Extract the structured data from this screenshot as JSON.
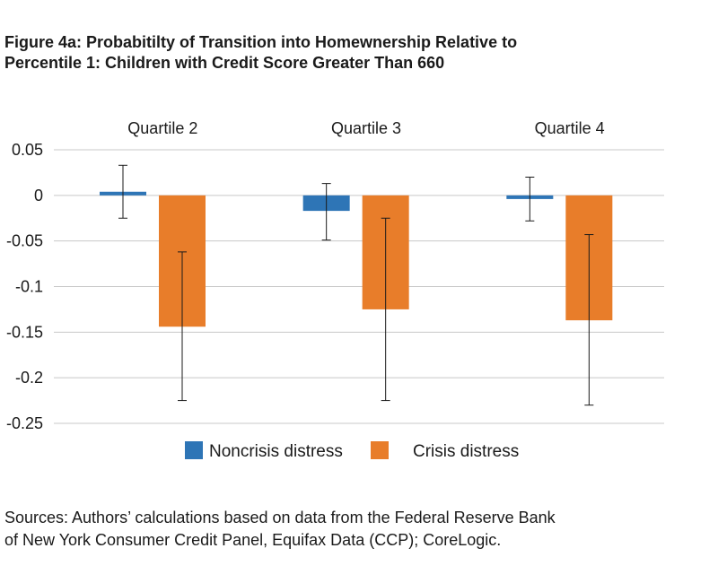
{
  "title_lines": [
    "Figure 4a: Probabitilty of Transition into Homewnership Relative to",
    "Percentile 1: Children with Credit Score Greater Than 660"
  ],
  "source_lines": [
    "Sources: Authors’ calculations based on data from the Federal Reserve Bank",
    "of New York Consumer Credit Panel, Equifax Data (CCP); CoreLogic."
  ],
  "chart_data": {
    "type": "bar",
    "categories": [
      "Quartile 2",
      "Quartile 3",
      "Quartile 4"
    ],
    "category_label_position": "top",
    "series": [
      {
        "name": "Noncrisis distress",
        "color": "#2e75b6",
        "values": [
          0.004,
          -0.017,
          -0.004
        ],
        "error_low": [
          -0.025,
          -0.049,
          -0.028
        ],
        "error_high": [
          0.033,
          0.013,
          0.02
        ]
      },
      {
        "name": "Crisis distress",
        "color": "#e87d2a",
        "values": [
          -0.144,
          -0.125,
          -0.137
        ],
        "error_low": [
          -0.225,
          -0.225,
          -0.23
        ],
        "error_high": [
          -0.062,
          -0.025,
          -0.043
        ]
      }
    ],
    "ylim": [
      -0.25,
      0.05
    ],
    "yticks": [
      0.05,
      0,
      -0.05,
      -0.1,
      -0.15,
      -0.2,
      -0.25
    ],
    "ytick_labels": [
      "0.05",
      "0",
      "-0.05",
      "-0.1",
      "-0.15",
      "-0.2",
      "-0.25"
    ],
    "grid": true,
    "legend_position": "bottom"
  }
}
